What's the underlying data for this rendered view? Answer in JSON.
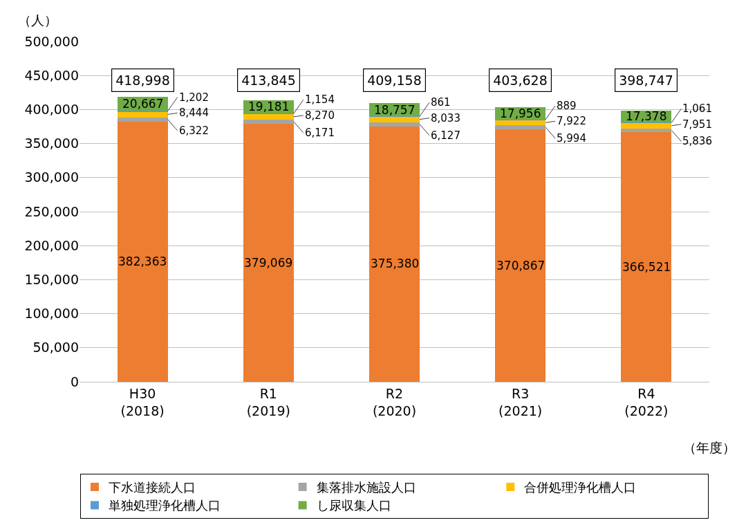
{
  "chart_data": {
    "type": "bar",
    "stacked": true,
    "ylabel": "（人）",
    "xlabel": "（年度）",
    "categories": [
      "H30\n(2018)",
      "R1\n(2019)",
      "R2\n(2020)",
      "R3\n(2021)",
      "R4\n(2022)"
    ],
    "series": [
      {
        "name": "下水道接続人口",
        "color": "#ed7d31",
        "values": [
          382363,
          379069,
          375380,
          370867,
          366521
        ],
        "value_labels": [
          "382,363",
          "379,069",
          "375,380",
          "370,867",
          "366,521"
        ]
      },
      {
        "name": "集落排水施設人口",
        "color": "#a5a5a5",
        "values": [
          6322,
          6171,
          6127,
          5994,
          5836
        ],
        "value_labels": [
          "6,322",
          "6,171",
          "6,127",
          "5,994",
          "5,836"
        ]
      },
      {
        "name": "合併処理浄化槽人口",
        "color": "#ffc000",
        "values": [
          8444,
          8270,
          8033,
          7922,
          7951
        ],
        "value_labels": [
          "8,444",
          "8,270",
          "8,033",
          "7,922",
          "7,951"
        ]
      },
      {
        "name": "単独処理浄化槽人口",
        "color": "#5b9bd5",
        "values": [
          1202,
          1154,
          861,
          889,
          1061
        ],
        "value_labels": [
          "1,202",
          "1,154",
          "861",
          "889",
          "1,061"
        ]
      },
      {
        "name": "し尿収集人口",
        "color": "#70ad47",
        "values": [
          20667,
          19181,
          18757,
          17956,
          17378
        ],
        "value_labels": [
          "20,667",
          "19,181",
          "18,757",
          "17,956",
          "17,378"
        ]
      }
    ],
    "totals": [
      "418,998",
      "413,845",
      "409,158",
      "403,628",
      "398,747"
    ],
    "ylim": [
      0,
      500000
    ],
    "yticks": [
      {
        "value": 0,
        "label": "0"
      },
      {
        "value": 50000,
        "label": "50,000"
      },
      {
        "value": 100000,
        "label": "100,000"
      },
      {
        "value": 150000,
        "label": "150,000"
      },
      {
        "value": 200000,
        "label": "200,000"
      },
      {
        "value": 250000,
        "label": "250,000"
      },
      {
        "value": 300000,
        "label": "300,000"
      },
      {
        "value": 350000,
        "label": "350,000"
      },
      {
        "value": 400000,
        "label": "400,000"
      },
      {
        "value": 450000,
        "label": "450,000"
      },
      {
        "value": 500000,
        "label": "500,000"
      }
    ],
    "grid": "y",
    "legend": "bottom"
  }
}
